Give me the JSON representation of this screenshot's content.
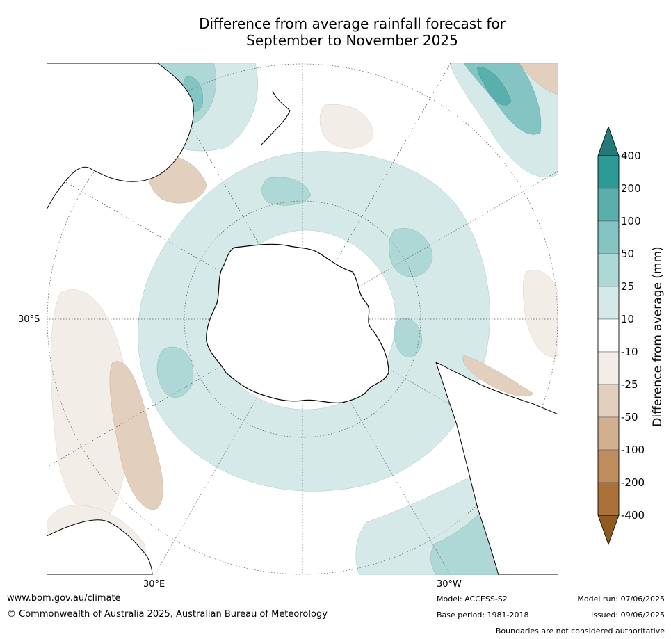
{
  "title_line1": "Difference from average rainfall forecast for",
  "title_line2": "September to November 2025",
  "axes": {
    "lat_label": "30°S",
    "lon_labels": [
      "30°E",
      "30°W"
    ]
  },
  "colorbar": {
    "label": "Difference from average (mm)",
    "ticks": [
      "400",
      "200",
      "100",
      "50",
      "25",
      "10",
      "-10",
      "-25",
      "-50",
      "-100",
      "-200",
      "-400"
    ],
    "colors": [
      "#237a78",
      "#2e9a96",
      "#5aaeac",
      "#84c4c2",
      "#add8d6",
      "#d5eae8",
      "#ffffff",
      "#f2ede6",
      "#e3cfbd",
      "#d0b08e",
      "#bd8d5e",
      "#aa7138",
      "#8f5a22"
    ]
  },
  "footer": {
    "website": "www.bom.gov.au/climate",
    "copyright": "© Commonwealth of Australia 2025, Australian Bureau of Meteorology",
    "model": "Model: ACCESS-S2",
    "base_period": "Base period: 1981-2018",
    "model_run": "Model run: 07/06/2025",
    "issued": "Issued: 09/06/2025",
    "boundaries": "Boundaries are not considered authoritative"
  }
}
